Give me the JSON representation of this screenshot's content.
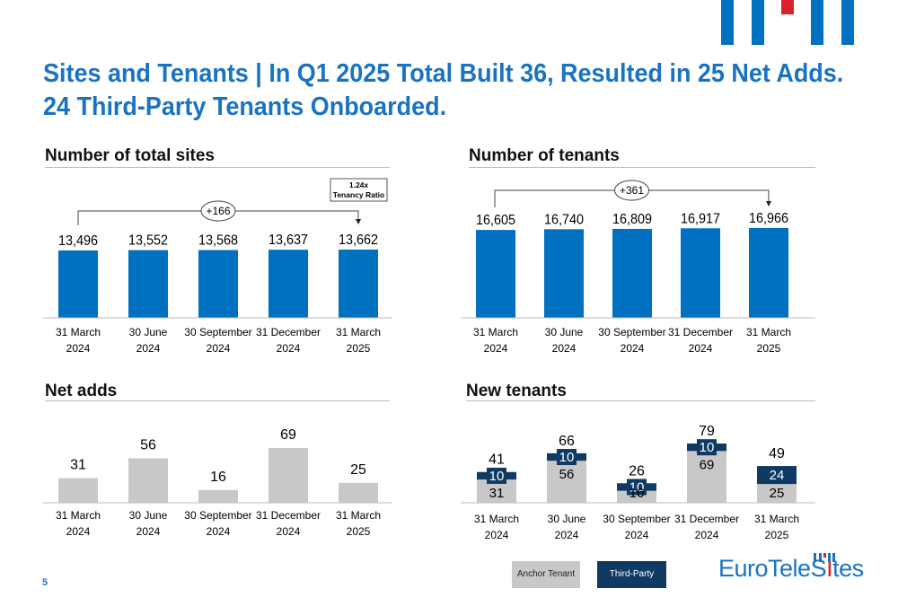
{
  "title_line1": "Sites and Tenants | In Q1 2025 Total Built 36, Resulted in 25 Net Adds.",
  "title_line2": "24 Third-Party Tenants Onboarded.",
  "page_number": "5",
  "legend": {
    "anchor": "Anchor Tenant",
    "third_party": "Third-Party"
  },
  "logo": {
    "part1": "EuroTeleS",
    "part2": "I",
    "part3": "tes"
  },
  "colors": {
    "primary_blue": "#0070C0",
    "title_blue": "#1A73C2",
    "dark_navy": "#0E3A63",
    "gray": "#C8C8C8",
    "brand_red": "#D8232A"
  },
  "chart_data": [
    {
      "id": "sites",
      "type": "bar",
      "title": "Number of total sites",
      "categories": [
        [
          "31 March",
          "2024"
        ],
        [
          "30 June",
          "2024"
        ],
        [
          "30 September",
          "2024"
        ],
        [
          "31 December",
          "2024"
        ],
        [
          "31 March",
          "2025"
        ]
      ],
      "values": [
        13496,
        13552,
        13568,
        13637,
        13662
      ],
      "labels": [
        "13,496",
        "13,552",
        "13,568",
        "13,637",
        "13,662"
      ],
      "bracket_label": "+166",
      "note_box": [
        "1.24x",
        "Tenancy Ratio"
      ]
    },
    {
      "id": "tenants",
      "type": "bar",
      "title": "Number of tenants",
      "categories": [
        [
          "31 March",
          "2024"
        ],
        [
          "30 June",
          "2024"
        ],
        [
          "30 September",
          "2024"
        ],
        [
          "31 December",
          "2024"
        ],
        [
          "31 March",
          "2025"
        ]
      ],
      "values": [
        16605,
        16740,
        16809,
        16917,
        16966
      ],
      "labels": [
        "16,605",
        "16,740",
        "16,809",
        "16,917",
        "16,966"
      ],
      "bracket_label": "+361"
    },
    {
      "id": "netadds",
      "type": "bar",
      "title": "Net adds",
      "categories": [
        [
          "31 March",
          "2024"
        ],
        [
          "30 June",
          "2024"
        ],
        [
          "30 September",
          "2024"
        ],
        [
          "31 December",
          "2024"
        ],
        [
          "31 March",
          "2025"
        ]
      ],
      "values": [
        31,
        56,
        16,
        69,
        25
      ],
      "labels": [
        "31",
        "56",
        "16",
        "69",
        "25"
      ]
    },
    {
      "id": "newtenants",
      "type": "bar",
      "stacked": true,
      "title": "New tenants",
      "categories": [
        [
          "31 March",
          "2024"
        ],
        [
          "30 June",
          "2024"
        ],
        [
          "30 September",
          "2024"
        ],
        [
          "31 December",
          "2024"
        ],
        [
          "31 March",
          "2025"
        ]
      ],
      "series": [
        {
          "name": "Anchor Tenant",
          "values": [
            31,
            56,
            16,
            69,
            25
          ]
        },
        {
          "name": "Third-Party",
          "values": [
            10,
            10,
            10,
            10,
            24
          ]
        }
      ],
      "totals": [
        41,
        66,
        26,
        79,
        49
      ]
    }
  ]
}
